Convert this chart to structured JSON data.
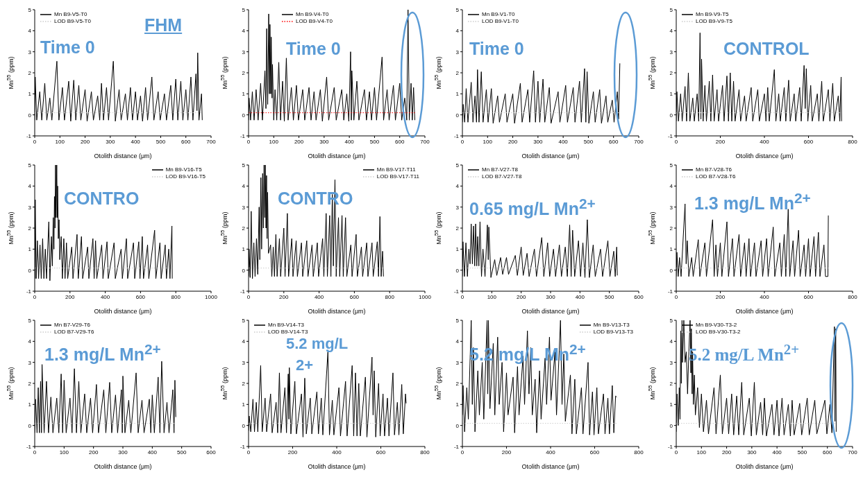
{
  "chart_data": [
    {
      "type": "line",
      "xlabel": "Otolith distance (μm)",
      "ylabel": "Mn$^{55}$ (ppm)",
      "xlim": [
        0,
        700
      ],
      "xticks": [
        0,
        100,
        200,
        300,
        400,
        500,
        600,
        700
      ],
      "ylim": [
        -1,
        5
      ],
      "yticks": [
        -1,
        0,
        1,
        2,
        3,
        4,
        5
      ],
      "legend": "top left",
      "annotations": [
        "FHM",
        "Time 0"
      ],
      "series": [
        {
          "name": "Mn B9-V5-T0",
          "color": "#000000",
          "x": [
            0,
            2,
            8,
            20,
            28,
            40,
            48,
            60,
            68,
            88,
            96,
            110,
            118,
            135,
            143,
            155,
            163,
            175,
            183,
            200,
            208,
            225,
            233,
            250,
            258,
            265,
            273,
            285,
            293,
            312,
            320,
            335,
            343,
            360,
            368,
            380,
            388,
            400,
            408,
            420,
            428,
            440,
            448,
            465,
            473,
            490,
            498,
            515,
            523,
            540,
            548,
            560,
            568,
            580,
            588,
            600,
            608,
            620,
            628,
            640,
            644,
            647,
            652,
            662,
            665
          ],
          "values": [
            -0.25,
            1.8,
            -0.25,
            1.1,
            -0.25,
            1.5,
            -0.25,
            0.8,
            -0.25,
            2.55,
            -0.25,
            1.3,
            -0.25,
            1.6,
            -0.3,
            1.65,
            -0.25,
            1.4,
            -0.25,
            1.2,
            -0.3,
            1.1,
            -0.25,
            0.9,
            -0.25,
            1.5,
            -0.25,
            1.3,
            -0.25,
            2.55,
            -0.3,
            1.2,
            -0.25,
            1.0,
            -0.25,
            1.3,
            -0.25,
            1.1,
            -0.25,
            0.9,
            -0.3,
            1.3,
            -0.25,
            1.8,
            -0.25,
            1.1,
            -0.25,
            1.0,
            -0.25,
            1.4,
            -0.25,
            1.7,
            -0.25,
            1.6,
            -0.25,
            1.2,
            -0.25,
            1.8,
            -0.25,
            1.95,
            0.2,
            2.95,
            -0.25,
            1.0,
            -0.25
          ]
        },
        {
          "name": "LOD B9-V5-T0",
          "color": "#cccccc",
          "line_style": "dotted",
          "x": [
            0,
            665
          ],
          "values": [
            0.1,
            0.1
          ]
        }
      ]
    },
    {
      "type": "line",
      "xlabel": "Otolith distance (μm)",
      "ylabel": "Mn$^{55}$ (ppm)",
      "xlim": [
        0,
        700
      ],
      "xticks": [
        0,
        100,
        200,
        300,
        400,
        500,
        600,
        700
      ],
      "ylim": [
        -1,
        5
      ],
      "yticks": [
        -1,
        0,
        1,
        2,
        3,
        4,
        5
      ],
      "legend": "top left",
      "annotations": [
        "Time 0"
      ],
      "series": [
        {
          "name": "Mn B9-V4-T0",
          "color": "#000000",
          "x": [
            0,
            2,
            8,
            15,
            22,
            30,
            38,
            48,
            55,
            65,
            69,
            72,
            76,
            80,
            83,
            85,
            88,
            90,
            93,
            95,
            100,
            105,
            112,
            120,
            127,
            135,
            142,
            150,
            157,
            170,
            178,
            190,
            198,
            215,
            223,
            240,
            248,
            260,
            268,
            285,
            293,
            310,
            318,
            340,
            348,
            370,
            378,
            390,
            398,
            405,
            408,
            410,
            418,
            430,
            438,
            460,
            468,
            480,
            488,
            500,
            508,
            530,
            536,
            550,
            558,
            575,
            583,
            600,
            608,
            620,
            628,
            633,
            638,
            645,
            650,
            655,
            660
          ],
          "values": [
            -0.25,
            0.8,
            -0.25,
            1.1,
            -0.25,
            1.2,
            -0.25,
            1.5,
            -0.25,
            2.1,
            0.3,
            4.1,
            0.5,
            4.8,
            1.0,
            4.3,
            1.0,
            3.7,
            0.8,
            2.4,
            -0.25,
            1.2,
            -0.25,
            2.5,
            -0.25,
            1.6,
            -0.3,
            2.7,
            -0.25,
            1.3,
            -0.25,
            1.4,
            -0.25,
            1.2,
            -0.25,
            1.3,
            -0.25,
            1.1,
            -0.25,
            1.2,
            -0.3,
            1.8,
            -0.25,
            1.3,
            -0.25,
            1.2,
            -0.25,
            1.0,
            -0.3,
            3.0,
            -0.25,
            2.1,
            -0.25,
            1.6,
            -0.25,
            1.2,
            -0.25,
            1.1,
            -0.25,
            1.3,
            -0.25,
            2.75,
            -0.25,
            1.2,
            -0.25,
            1.4,
            -0.25,
            1.5,
            -0.25,
            0.8,
            -0.25,
            5.0,
            -0.25,
            1.5,
            -0.25,
            1.3,
            -0.25
          ]
        },
        {
          "name": "LOD B9-V4-T0",
          "color": "#ff0000",
          "line_style": "dotted",
          "x": [
            0,
            660
          ],
          "values": [
            0.1,
            0.1
          ]
        }
      ]
    },
    {
      "type": "line",
      "xlabel": "Otolith distance (μm)",
      "ylabel": "Mn$^{55}$ (ppm)",
      "xlim": [
        0,
        700
      ],
      "xticks": [
        0,
        100,
        200,
        300,
        400,
        500,
        600,
        700
      ],
      "ylim": [
        -1,
        5
      ],
      "yticks": [
        -1,
        0,
        1,
        2,
        3,
        4,
        5
      ],
      "legend": "top left",
      "annotations": [
        "Time 0"
      ],
      "series": [
        {
          "name": "Mn B9-V1-T0",
          "color": "#000000",
          "x": [
            0,
            3,
            9,
            15,
            22,
            35,
            42,
            50,
            56,
            60,
            66,
            75,
            82,
            95,
            102,
            115,
            122,
            140,
            147,
            170,
            177,
            200,
            207,
            230,
            237,
            260,
            267,
            283,
            290,
            300,
            307,
            320,
            327,
            345,
            352,
            380,
            387,
            410,
            417,
            440,
            447,
            465,
            472,
            485,
            490,
            495,
            502,
            520,
            527,
            545,
            552,
            570,
            577,
            595,
            602,
            615,
            620,
            625
          ],
          "values": [
            -0.35,
            0.5,
            -0.35,
            1.25,
            -0.35,
            1.55,
            -0.35,
            0.9,
            -0.35,
            2.15,
            -0.35,
            2.05,
            -0.35,
            1.2,
            -0.35,
            1.25,
            -0.4,
            0.9,
            -0.35,
            1.0,
            -0.35,
            1.0,
            -0.4,
            1.5,
            -0.35,
            1.2,
            -0.35,
            2.1,
            -0.35,
            1.6,
            -0.35,
            1.7,
            -0.35,
            1.3,
            -0.4,
            1.1,
            -0.35,
            1.4,
            -0.35,
            1.3,
            -0.35,
            1.6,
            -0.35,
            2.2,
            -0.35,
            2.05,
            -0.4,
            1.1,
            -0.35,
            1.2,
            -0.4,
            0.9,
            -0.35,
            0.7,
            -0.35,
            1.1,
            -0.2,
            2.45
          ]
        },
        {
          "name": "LOD B9-V1-T0",
          "color": "#cccccc",
          "line_style": "dotted",
          "x": [
            0,
            625
          ],
          "values": [
            0.1,
            0.1
          ]
        }
      ]
    },
    {
      "type": "line",
      "xlabel": "Otolith distance (μm)",
      "ylabel": "Mn$^{55}$ (ppm)",
      "xlim": [
        0,
        800
      ],
      "xticks": [
        0,
        200,
        400,
        600,
        800
      ],
      "ylim": [
        -1,
        5
      ],
      "yticks": [
        -1,
        0,
        1,
        2,
        3,
        4,
        5
      ],
      "legend": "top left",
      "annotations": [
        "CONTROL"
      ],
      "series": [
        {
          "name": "Mn B9-V9-T5",
          "color": "#000000",
          "x": [
            0,
            3,
            10,
            20,
            27,
            40,
            47,
            55,
            62,
            75,
            82,
            95,
            102,
            108,
            112,
            115,
            122,
            130,
            137,
            150,
            157,
            165,
            172,
            185,
            192,
            210,
            217,
            230,
            237,
            245,
            252,
            260,
            267,
            285,
            292,
            310,
            317,
            340,
            347,
            370,
            377,
            400,
            407,
            415,
            422,
            445,
            452,
            465,
            472,
            490,
            497,
            510,
            517,
            535,
            542,
            560,
            567,
            580,
            585,
            590,
            597,
            610,
            617,
            640,
            647,
            660,
            667,
            690,
            697,
            710,
            717,
            735,
            742,
            748,
            750
          ],
          "values": [
            -0.3,
            1.1,
            -0.3,
            1.0,
            -0.3,
            1.35,
            -0.3,
            2.0,
            -0.3,
            0.8,
            -0.3,
            1.0,
            -0.3,
            3.9,
            -0.2,
            2.65,
            -0.3,
            1.4,
            -0.3,
            1.6,
            -0.3,
            1.9,
            -0.3,
            1.2,
            -0.3,
            1.4,
            -0.3,
            1.85,
            -0.3,
            2.0,
            -0.3,
            1.6,
            -0.3,
            1.2,
            -0.3,
            0.9,
            -0.3,
            1.3,
            -0.3,
            1.2,
            -0.3,
            1.0,
            -0.3,
            1.3,
            -0.3,
            2.15,
            -0.3,
            1.0,
            -0.3,
            1.3,
            -0.3,
            1.65,
            -0.3,
            1.0,
            -0.3,
            1.3,
            -0.3,
            2.35,
            0.3,
            2.2,
            -0.3,
            1.4,
            -0.3,
            1.0,
            -0.3,
            1.6,
            -0.3,
            1.2,
            -0.3,
            1.5,
            -0.3,
            0.9,
            -0.3,
            1.8,
            -0.3
          ]
        },
        {
          "name": "LOD B9-V9-T5",
          "color": "#cccccc",
          "line_style": "dotted",
          "x": [
            0,
            750
          ],
          "values": [
            0.1,
            0.1
          ]
        }
      ]
    },
    {
      "type": "line",
      "xlabel": "Otolith distance (μm)",
      "ylabel": "Mn$^{55}$ (ppm)",
      "xlim": [
        0,
        1000
      ],
      "xticks": [
        0,
        200,
        400,
        600,
        800,
        1000
      ],
      "ylim": [
        -1,
        5
      ],
      "yticks": [
        -1,
        0,
        1,
        2,
        3,
        4,
        5
      ],
      "legend": "top right",
      "annotations": [
        "CONTRO"
      ],
      "series": [
        {
          "name": "Mn B9-V16-T5",
          "color": "#000000",
          "x": [
            0,
            3,
            8,
            15,
            22,
            30,
            37,
            45,
            52,
            60,
            67,
            80,
            86,
            95,
            100,
            105,
            109,
            112,
            115,
            118,
            121,
            125,
            128,
            130,
            134,
            138,
            142,
            150,
            157,
            165,
            172,
            180,
            187,
            210,
            217,
            240,
            247,
            265,
            272,
            300,
            307,
            330,
            337,
            345,
            352,
            380,
            387,
            410,
            417,
            450,
            457,
            490,
            497,
            520,
            527,
            560,
            567,
            590,
            597,
            610,
            617,
            640,
            647,
            680,
            687,
            710,
            717,
            740,
            747,
            760,
            767,
            778,
            780
          ],
          "values": [
            -0.4,
            3.35,
            -0.4,
            1.4,
            -0.4,
            1.2,
            -0.4,
            1.5,
            -0.4,
            1.0,
            -0.4,
            2.3,
            -0.5,
            1.6,
            0.2,
            2.5,
            1.0,
            3.5,
            2.0,
            5.0,
            2.5,
            5.0,
            2.5,
            4.0,
            1.5,
            2.4,
            0.5,
            1.6,
            -0.4,
            1.5,
            -0.4,
            1.3,
            -0.4,
            1.1,
            -0.4,
            1.7,
            -0.4,
            1.6,
            -0.4,
            1.1,
            -0.4,
            1.5,
            -0.4,
            1.4,
            -0.4,
            1.2,
            -0.4,
            1.35,
            -0.4,
            1.3,
            -0.4,
            1.0,
            -0.4,
            1.5,
            -0.4,
            1.3,
            -0.4,
            1.35,
            -0.4,
            1.6,
            -0.4,
            1.2,
            -0.4,
            1.9,
            -0.4,
            1.3,
            -0.4,
            1.2,
            -0.4,
            1.0,
            -0.4,
            2.1,
            -0.4
          ]
        },
        {
          "name": "LOD B9-V16-T5",
          "color": "#cccccc",
          "line_style": "dotted",
          "x": [
            0,
            780
          ],
          "values": [
            0.1,
            0.1
          ]
        }
      ]
    },
    {
      "type": "line",
      "xlabel": "Otolith distance (μm)",
      "ylabel": "Mn$^{55}$ (ppm)",
      "xlim": [
        0,
        1000
      ],
      "xticks": [
        0,
        200,
        400,
        600,
        800,
        1000
      ],
      "ylim": [
        -1,
        5
      ],
      "yticks": [
        -1,
        0,
        1,
        2,
        3,
        4,
        5
      ],
      "legend": "top right",
      "annotations": [
        "CONTRO"
      ],
      "series": [
        {
          "name": "Mn B9-V17-T11",
          "color": "#000000",
          "x": [
            0,
            3,
            9,
            15,
            22,
            30,
            37,
            45,
            52,
            60,
            64,
            70,
            74,
            80,
            84,
            88,
            92,
            95,
            99,
            102,
            105,
            108,
            113,
            125,
            132,
            140,
            147,
            155,
            162,
            175,
            182,
            200,
            207,
            220,
            227,
            245,
            252,
            270,
            277,
            300,
            307,
            330,
            337,
            360,
            367,
            390,
            397,
            420,
            427,
            440,
            447,
            460,
            467,
            475,
            481,
            490,
            497,
            510,
            517,
            530,
            537,
            550,
            557,
            580,
            587,
            610,
            617,
            640,
            647,
            670,
            677,
            700,
            707,
            730,
            737,
            745,
            752,
            760,
            765
          ],
          "values": [
            -0.3,
            1.0,
            -0.35,
            2.8,
            -0.4,
            1.3,
            -0.3,
            1.5,
            -0.2,
            3.0,
            0.5,
            4.4,
            1.0,
            4.6,
            2.0,
            5.0,
            2.5,
            5.0,
            2.0,
            4.5,
            1.5,
            3.7,
            0.8,
            1.2,
            -0.3,
            1.1,
            -0.3,
            1.7,
            -0.3,
            1.5,
            -0.3,
            2.0,
            -0.3,
            2.7,
            -0.3,
            1.5,
            -0.3,
            1.4,
            -0.3,
            1.3,
            -0.3,
            1.4,
            -0.3,
            1.2,
            -0.3,
            1.3,
            -0.3,
            1.5,
            -0.3,
            2.7,
            -0.3,
            2.6,
            -0.3,
            3.6,
            0.2,
            4.3,
            -0.3,
            2.5,
            -0.3,
            2.6,
            -0.3,
            2.5,
            -0.3,
            1.2,
            -0.3,
            1.7,
            -0.3,
            1.1,
            -0.3,
            1.3,
            -0.3,
            1.3,
            -0.3,
            1.35,
            -0.3,
            2.55,
            -0.3,
            0.9,
            -0.3
          ]
        },
        {
          "name": "LOD B9-V17-T11",
          "color": "#cccccc",
          "line_style": "dotted",
          "x": [
            0,
            765
          ],
          "values": [
            0.1,
            0.1
          ]
        }
      ]
    },
    {
      "type": "line",
      "xlabel": "Otolith distance (μm)",
      "ylabel": "Mn$^{55}$ (ppm)",
      "xlim": [
        0,
        600
      ],
      "xticks": [
        0,
        100,
        200,
        300,
        400,
        500,
        600
      ],
      "ylim": [
        -1,
        5
      ],
      "yticks": [
        -1,
        0,
        1,
        2,
        3,
        4,
        5
      ],
      "legend": "top left",
      "annotations": [
        "0.65 mg/L Mn$^{2+}$"
      ],
      "series": [
        {
          "name": "Mn B7-V27-T8",
          "color": "#000000",
          "x": [
            0,
            2,
            7,
            12,
            17,
            22,
            26,
            30,
            34,
            38,
            42,
            45,
            49,
            52,
            56,
            60,
            65,
            70,
            77,
            85,
            88,
            90,
            97,
            110,
            117,
            130,
            137,
            150,
            157,
            180,
            187,
            200,
            207,
            220,
            227,
            245,
            252,
            270,
            277,
            290,
            297,
            310,
            317,
            330,
            337,
            350,
            357,
            365,
            370,
            375,
            382,
            395,
            402,
            410,
            417,
            425,
            432,
            445,
            452,
            470,
            477,
            495,
            502,
            515,
            520,
            525,
            527
          ],
          "values": [
            -0.3,
            1.35,
            -0.3,
            1.3,
            -0.3,
            1.0,
            0.3,
            2.2,
            0.3,
            2.1,
            0.2,
            2.2,
            0.2,
            1.6,
            0.2,
            2.3,
            -0.3,
            1.0,
            -0.3,
            2.15,
            0.5,
            2.05,
            -0.35,
            0.5,
            -0.25,
            0.6,
            -0.2,
            0.6,
            -0.2,
            0.7,
            -0.25,
            1.1,
            -0.25,
            0.8,
            -0.3,
            1.0,
            -0.3,
            1.55,
            -0.3,
            1.3,
            -0.3,
            1.0,
            -0.3,
            1.2,
            -0.3,
            1.1,
            -0.3,
            2.15,
            -0.3,
            1.9,
            -0.3,
            1.4,
            -0.3,
            1.3,
            -0.35,
            2.4,
            -0.35,
            1.2,
            -0.3,
            1.0,
            -0.3,
            1.4,
            -0.3,
            0.9,
            -0.3,
            1.1,
            -0.25
          ]
        },
        {
          "name": "LOD B7-V27-T8",
          "color": "#cccccc",
          "line_style": "dotted",
          "x": [
            0,
            527
          ],
          "values": [
            0.1,
            0.1
          ]
        }
      ]
    },
    {
      "type": "line",
      "xlabel": "Otolith distance (μm)",
      "ylabel": "Mn$^{55}$ (ppm)",
      "xlim": [
        0,
        800
      ],
      "xticks": [
        0,
        200,
        400,
        600,
        800
      ],
      "ylim": [
        -1,
        5
      ],
      "yticks": [
        -1,
        0,
        1,
        2,
        3,
        4,
        5
      ],
      "legend": "top left",
      "annotations": [
        "1.3 mg/L Mn$^{2+}$"
      ],
      "series": [
        {
          "name": "Mn B7-V28-T6",
          "color": "#000000",
          "x": [
            0,
            3,
            9,
            15,
            22,
            40,
            45,
            50,
            57,
            70,
            77,
            100,
            107,
            130,
            137,
            165,
            172,
            180,
            187,
            200,
            207,
            230,
            237,
            255,
            262,
            285,
            292,
            310,
            317,
            330,
            337,
            355,
            362,
            385,
            392,
            410,
            417,
            440,
            447,
            470,
            477,
            490,
            497,
            508,
            515,
            530,
            537,
            555,
            562,
            580,
            587,
            600,
            607,
            625,
            632,
            645,
            652,
            670,
            677,
            688,
            690
          ],
          "values": [
            -0.3,
            0.85,
            -0.3,
            0.6,
            -0.3,
            3.15,
            0.3,
            1.4,
            -0.3,
            0.6,
            -0.3,
            1.45,
            -0.3,
            1.3,
            -0.3,
            2.4,
            -0.3,
            1.2,
            -0.3,
            1.3,
            -0.3,
            2.3,
            -0.3,
            1.5,
            -0.3,
            1.7,
            -0.3,
            1.3,
            -0.3,
            1.5,
            -0.3,
            1.3,
            -0.3,
            1.4,
            -0.3,
            1.5,
            -0.3,
            2.05,
            -0.3,
            1.3,
            -0.3,
            1.7,
            -0.3,
            2.9,
            -0.3,
            1.4,
            -0.3,
            1.9,
            -0.3,
            1.2,
            -0.3,
            1.5,
            -0.3,
            1.6,
            -0.3,
            1.8,
            -0.3,
            1.2,
            -0.3,
            -0.3,
            2.6
          ]
        },
        {
          "name": "LOD B7-V28-T6",
          "color": "#cccccc",
          "line_style": "dotted",
          "x": [
            0,
            690
          ],
          "values": [
            0.1,
            0.1
          ]
        }
      ]
    },
    {
      "type": "line",
      "xlabel": "Otolith distance (μm)",
      "ylabel": "Mn$^{55}$ (ppm)",
      "xlim": [
        0,
        600
      ],
      "xticks": [
        0,
        100,
        200,
        300,
        400,
        500,
        600
      ],
      "ylim": [
        -1,
        5
      ],
      "yticks": [
        -1,
        0,
        1,
        2,
        3,
        4,
        5
      ],
      "legend": "top left",
      "annotations": [
        "1.3 mg/L Mn$^{2+}$"
      ],
      "series": [
        {
          "name": "Mn B7-V29-T6",
          "color": "#000000",
          "x": [
            0,
            3,
            8,
            12,
            16,
            20,
            23,
            25,
            32,
            40,
            47,
            55,
            62,
            75,
            82,
            90,
            95,
            100,
            107,
            120,
            127,
            135,
            142,
            150,
            157,
            170,
            177,
            190,
            197,
            210,
            217,
            235,
            242,
            255,
            262,
            275,
            282,
            295,
            298,
            300,
            307,
            320,
            327,
            345,
            352,
            365,
            372,
            390,
            395,
            400,
            407,
            420,
            426,
            432,
            440,
            450,
            457,
            470,
            474,
            477,
            480
          ],
          "values": [
            -0.35,
            1.25,
            -0.35,
            1.8,
            -0.35,
            2.1,
            -0.35,
            2.9,
            -0.35,
            2.1,
            -0.35,
            1.35,
            -0.35,
            1.3,
            -0.35,
            2.45,
            -0.35,
            2.15,
            -0.35,
            1.3,
            -0.35,
            2.7,
            -0.35,
            2.1,
            -0.35,
            1.5,
            -0.35,
            1.3,
            -0.35,
            1.95,
            -0.35,
            1.7,
            -0.35,
            2.05,
            -0.35,
            1.45,
            -0.35,
            1.7,
            -0.35,
            2.35,
            -0.35,
            1.2,
            -0.35,
            2.5,
            -0.35,
            1.2,
            -0.35,
            1.25,
            -0.35,
            1.45,
            -0.35,
            2.3,
            -0.35,
            3.05,
            -0.35,
            1.1,
            -0.35,
            1.7,
            -0.35,
            2.15,
            0.4
          ]
        },
        {
          "name": "LOD B7-V29-T6",
          "color": "#cccccc",
          "line_style": "dotted",
          "x": [
            0,
            480
          ],
          "values": [
            0.1,
            0.1
          ]
        }
      ]
    },
    {
      "type": "line",
      "xlabel": "Otolith distance (μm)",
      "ylabel": "Mn$^{55}$ (ppm)",
      "xlim": [
        0,
        800
      ],
      "xticks": [
        0,
        200,
        400,
        600,
        800
      ],
      "ylim": [
        -1,
        5
      ],
      "yticks": [
        -1,
        0,
        1,
        2,
        3,
        4,
        5
      ],
      "legend": "top left",
      "annotations": [
        "5.2 mg/L",
        "2+"
      ],
      "series": [
        {
          "name": "Mn B9-V14-T3",
          "color": "#000000",
          "x": [
            0,
            3,
            10,
            20,
            27,
            35,
            42,
            55,
            62,
            75,
            82,
            100,
            107,
            125,
            132,
            140,
            147,
            165,
            172,
            180,
            183,
            185,
            192,
            210,
            217,
            240,
            247,
            255,
            262,
            280,
            287,
            310,
            317,
            330,
            337,
            360,
            367,
            380,
            387,
            410,
            417,
            440,
            447,
            470,
            477,
            485,
            492,
            500,
            507,
            530,
            537,
            560,
            565,
            570,
            577,
            590,
            597,
            610,
            617,
            630,
            637,
            655,
            662,
            675,
            682,
            695,
            702,
            712,
            715
          ],
          "values": [
            -0.25,
            0.45,
            -0.3,
            1.25,
            -0.3,
            1.1,
            -0.3,
            2.85,
            -0.3,
            1.3,
            -0.3,
            1.5,
            -0.35,
            1.1,
            -0.35,
            2.5,
            -0.35,
            1.8,
            -0.35,
            2.45,
            0.3,
            2.75,
            -0.4,
            2.1,
            -0.4,
            1.5,
            -0.55,
            2.25,
            -0.4,
            1.3,
            -0.4,
            1.6,
            -0.4,
            1.3,
            -0.45,
            3.5,
            -0.45,
            1.2,
            -0.45,
            1.8,
            -0.5,
            2.1,
            -0.5,
            2.85,
            -0.5,
            2.5,
            -0.5,
            2.0,
            -0.5,
            2.3,
            -0.55,
            3.25,
            0.5,
            2.6,
            -0.55,
            2.0,
            -0.5,
            1.5,
            -0.5,
            1.3,
            -0.5,
            2.5,
            -0.45,
            1.1,
            -0.45,
            1.95,
            -0.4,
            1.5,
            1.05
          ]
        },
        {
          "name": "LOD B9-V14-T3",
          "color": "#cccccc",
          "line_style": "dotted",
          "x": [
            0,
            715
          ],
          "values": [
            0.1,
            0.1
          ]
        }
      ]
    },
    {
      "type": "line",
      "xlabel": "Otolith distance (μm)",
      "ylabel": "Mn$^{55}$ (ppm)",
      "xlim": [
        0,
        800
      ],
      "xticks": [
        0,
        200,
        400,
        600,
        800
      ],
      "ylim": [
        -1,
        5
      ],
      "yticks": [
        -1,
        0,
        1,
        2,
        3,
        4,
        5
      ],
      "legend": "top right",
      "annotations": [
        "5.2 mg/L Mn$^{2+}$"
      ],
      "series": [
        {
          "name": "Mn B9-V13-T3",
          "color": "#000000",
          "x": [
            0,
            3,
            10,
            20,
            27,
            40,
            45,
            50,
            57,
            70,
            77,
            90,
            97,
            112,
            115,
            118,
            125,
            140,
            147,
            160,
            167,
            180,
            187,
            200,
            207,
            230,
            237,
            250,
            257,
            275,
            282,
            295,
            302,
            310,
            317,
            330,
            337,
            350,
            357,
            375,
            382,
            395,
            402,
            420,
            427,
            445,
            452,
            460,
            467,
            490,
            497,
            510,
            517,
            540,
            547,
            570,
            577,
            590,
            597,
            610,
            617,
            640,
            647,
            660,
            667,
            680,
            687,
            695,
            700
          ],
          "values": [
            0.5,
            1.9,
            -0.3,
            1.8,
            0.3,
            5.0,
            1.0,
            3.7,
            -0.3,
            2.6,
            0.5,
            3.0,
            0.3,
            5.0,
            1.5,
            5.0,
            0.8,
            3.9,
            0.5,
            4.2,
            1.0,
            3.0,
            -0.3,
            2.5,
            0.5,
            2.3,
            -0.35,
            2.8,
            0.5,
            3.3,
            1.0,
            4.5,
            1.5,
            3.7,
            0.5,
            2.2,
            -0.35,
            2.6,
            0.3,
            3.2,
            1.0,
            4.2,
            1.2,
            3.5,
            0.5,
            5.0,
            1.0,
            3.4,
            0.2,
            2.4,
            -0.4,
            2.2,
            -0.4,
            1.8,
            -0.4,
            3.0,
            -0.45,
            1.6,
            -0.45,
            1.8,
            -0.4,
            1.5,
            -0.4,
            1.3,
            -0.4,
            1.9,
            -0.35,
            1.4,
            1.35
          ]
        },
        {
          "name": "LOD B9-V13-T3",
          "color": "#cccccc",
          "line_style": "dotted",
          "x": [
            0,
            700
          ],
          "values": [
            0.1,
            0.1
          ]
        }
      ]
    },
    {
      "type": "line",
      "xlabel": "Otolith distance (μm)",
      "ylabel": "Mn$^{55}$ (ppm)",
      "xlim": [
        0,
        700
      ],
      "xticks": [
        0,
        100,
        200,
        300,
        400,
        500,
        600,
        700
      ],
      "ylim": [
        -1,
        5
      ],
      "yticks": [
        -1,
        0,
        1,
        2,
        3,
        4,
        5
      ],
      "legend": "top left",
      "annotations": [
        "5.2 mg/L Mn$^{2+}$"
      ],
      "series": [
        {
          "name": "Mn B9-V30-T3-2",
          "color": "#000000",
          "x": [
            0,
            3,
            8,
            12,
            15,
            18,
            20,
            23,
            25,
            30,
            35,
            40,
            45,
            50,
            55,
            58,
            60,
            63,
            65,
            68,
            72,
            76,
            85,
            92,
            100,
            108,
            120,
            128,
            150,
            158,
            175,
            183,
            200,
            208,
            220,
            228,
            240,
            248,
            260,
            268,
            290,
            298,
            310,
            318,
            335,
            343,
            350,
            358,
            380,
            388,
            400,
            408,
            420,
            428,
            445,
            453,
            460,
            468,
            490,
            498,
            520,
            528,
            550,
            558,
            590,
            598,
            610,
            618,
            628,
            630,
            633,
            635
          ],
          "values": [
            -0.3,
            1.5,
            0.0,
            1.8,
            0.3,
            4.5,
            2.0,
            5.0,
            3.0,
            5.0,
            3.0,
            3.5,
            1.5,
            3.5,
            5.0,
            2.5,
            4.6,
            1.5,
            3.5,
            1.0,
            2.4,
            0.5,
            1.8,
            -0.1,
            1.5,
            -0.3,
            1.2,
            -0.4,
            1.8,
            -0.4,
            2.4,
            -0.4,
            1.3,
            -0.4,
            1.5,
            -0.45,
            1.4,
            -0.45,
            2.05,
            -0.45,
            1.3,
            -0.5,
            2.05,
            -0.45,
            1.1,
            -0.45,
            1.3,
            -0.5,
            1.0,
            -0.45,
            1.2,
            -0.5,
            1.3,
            -0.45,
            1.0,
            -0.5,
            1.2,
            -0.45,
            1.05,
            -0.45,
            1.3,
            -0.45,
            1.2,
            -0.4,
            1.2,
            -0.4,
            1.0,
            -0.35,
            4.7,
            0.2,
            4.6,
            -0.3
          ]
        },
        {
          "name": "LOD B9-V30-T3-2",
          "color": "#cccccc",
          "line_style": "dotted",
          "x": [
            0,
            635
          ],
          "values": [
            0.1,
            0.1
          ]
        }
      ]
    }
  ]
}
